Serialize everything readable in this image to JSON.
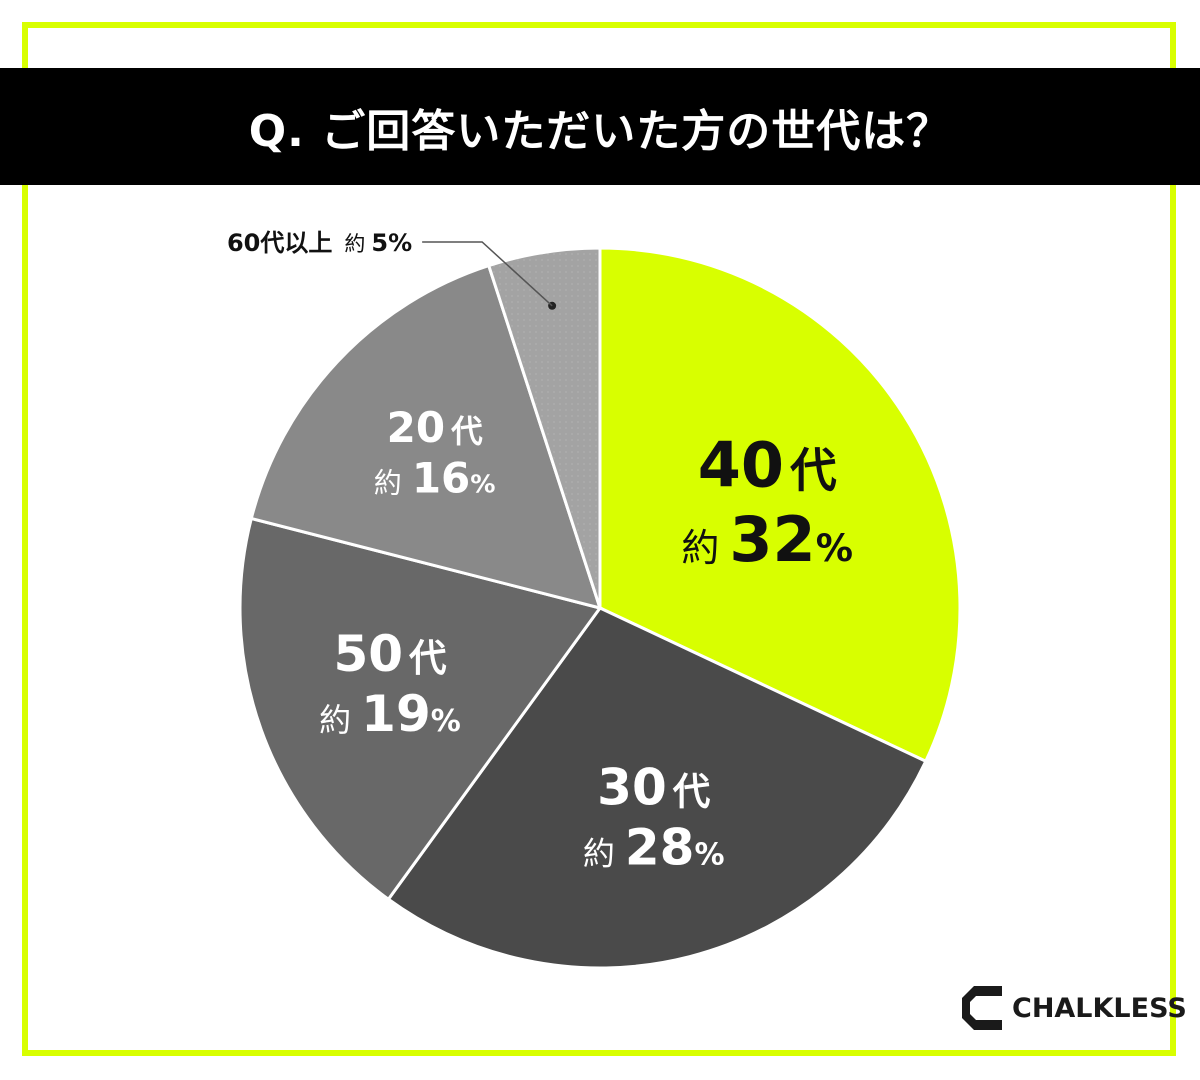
{
  "title": "Q. ご回答いただいた方の世代は？",
  "logo": {
    "text": "CHALKLESS",
    "icon": "chalkless-c-logo-icon"
  },
  "colors": {
    "accent": "#d8ff00",
    "frame": "#d8ff00",
    "title_bg": "#000000",
    "title_text": "#ffffff"
  },
  "chart_data": {
    "type": "pie",
    "start_angle": "12 o'clock, clockwise",
    "slices": [
      {
        "name": "40代",
        "value": 32,
        "label_value": "約 32%",
        "color": "#d8ff00",
        "text_color": "#111111"
      },
      {
        "name": "30代",
        "value": 28,
        "label_value": "約 28%",
        "color": "#4a4a4a",
        "text_color": "#ffffff"
      },
      {
        "name": "50代",
        "value": 19,
        "label_value": "約 19%",
        "color": "#686868",
        "text_color": "#ffffff"
      },
      {
        "name": "20代",
        "value": 16,
        "label_value": "約 16%",
        "color": "#898989",
        "text_color": "#ffffff"
      },
      {
        "name": "60代以上",
        "value": 5,
        "label_value": "約 5%",
        "color": "#a3a3a3",
        "text_color": "#111111",
        "callout": "60代以上 約 5%"
      }
    ]
  }
}
